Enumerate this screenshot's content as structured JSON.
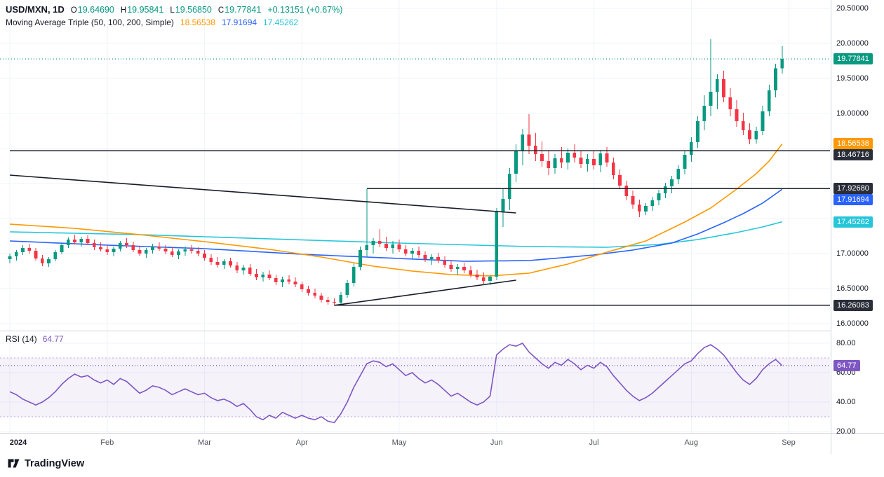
{
  "header": {
    "symbol": "USD/MXN, 1D",
    "ohlc": {
      "o_key": "O",
      "o_val": "19.64690",
      "h_key": "H",
      "h_val": "19.95841",
      "l_key": "L",
      "l_val": "19.56850",
      "c_key": "C",
      "c_val": "19.77841",
      "change": "+0.13151 (+0.67%)"
    },
    "ma_legend": {
      "title": "Moving Average Triple (50, 100, 200, Simple)",
      "ma50": "18.56538",
      "ma100": "17.91694",
      "ma200": "17.45262"
    },
    "rsi_legend": {
      "title": "RSI (14)",
      "value": "64.77"
    }
  },
  "footer": {
    "brand": "TradingView"
  },
  "colors": {
    "up": "#089981",
    "down": "#f23645",
    "sma50": "#ff9800",
    "sma100": "#2962ff",
    "sma200": "#26c6da",
    "rsi": "#7e57c2",
    "drawing": "#1a1d29",
    "grid": "#f0f3fa",
    "last_price_line": "#089981"
  },
  "axes": {
    "price_ticks": [
      {
        "label": "20.50000",
        "price": 20.5
      },
      {
        "label": "20.00000",
        "price": 20.0
      },
      {
        "label": "19.50000",
        "price": 19.5
      },
      {
        "label": "19.00000",
        "price": 19.0
      },
      {
        "label": "17.00000",
        "price": 17.0
      },
      {
        "label": "16.50000",
        "price": 16.5
      },
      {
        "label": "16.00000",
        "price": 16.0
      }
    ],
    "rsi_ticks": [
      {
        "label": "80.00",
        "value": 80
      },
      {
        "label": "60.00",
        "value": 60
      },
      {
        "label": "40.00",
        "value": 40
      },
      {
        "label": "20.00",
        "value": 20
      }
    ],
    "time_labels": [
      {
        "label": "2024",
        "index": 0,
        "strong": true
      },
      {
        "label": "Feb",
        "index": 15
      },
      {
        "label": "Mar",
        "index": 30
      },
      {
        "label": "Apr",
        "index": 45
      },
      {
        "label": "May",
        "index": 60
      },
      {
        "label": "Jun",
        "index": 75
      },
      {
        "label": "Jul",
        "index": 90
      },
      {
        "label": "Aug",
        "index": 105
      },
      {
        "label": "Sep",
        "index": 120
      }
    ],
    "price_badges": [
      {
        "label": "19.77841",
        "price": 19.77841,
        "bg": "#089981"
      },
      {
        "label": "18.56538",
        "price": 18.56538,
        "bg": "#ff9800"
      },
      {
        "label": "18.46716",
        "price": 18.46716,
        "bg": "#2a2e39"
      },
      {
        "label": "17.92680",
        "price": 17.9268,
        "bg": "#2a2e39"
      },
      {
        "label": "17.91694",
        "price": 17.91694,
        "bg": "#2962ff"
      },
      {
        "label": "17.45262",
        "price": 17.45262,
        "bg": "#26c6da"
      },
      {
        "label": "16.26083",
        "price": 16.26083,
        "bg": "#2a2e39"
      }
    ],
    "rsi_badge": {
      "label": "64.77",
      "value": 64.77,
      "bg": "#7e57c2"
    }
  },
  "chart_data": {
    "type": "candlestick",
    "title": "USD/MXN, 1D",
    "pair": "USD/MXN",
    "interval": "1D",
    "y_range": [
      16.0,
      20.5
    ],
    "x_months": [
      "2024",
      "Feb",
      "Mar",
      "Apr",
      "May",
      "Jun",
      "Jul",
      "Aug",
      "Sep"
    ],
    "candles_per_month": 15,
    "last": {
      "open": 19.6469,
      "high": 19.95841,
      "low": 19.5685,
      "close": 19.77841,
      "change": 0.13151,
      "change_pct": 0.67
    },
    "last_price": 19.77841,
    "ohlc": [
      [
        16.92,
        17.0,
        16.86,
        16.96
      ],
      [
        16.96,
        17.05,
        16.9,
        17.02
      ],
      [
        17.02,
        17.12,
        16.98,
        17.08
      ],
      [
        17.08,
        17.14,
        17.0,
        17.04
      ],
      [
        17.04,
        17.08,
        16.9,
        16.93
      ],
      [
        16.93,
        16.98,
        16.82,
        16.86
      ],
      [
        16.86,
        16.95,
        16.81,
        16.92
      ],
      [
        16.92,
        17.05,
        16.89,
        17.02
      ],
      [
        17.02,
        17.15,
        16.99,
        17.12
      ],
      [
        17.12,
        17.23,
        17.08,
        17.2
      ],
      [
        17.2,
        17.27,
        17.13,
        17.16
      ],
      [
        17.16,
        17.24,
        17.1,
        17.21
      ],
      [
        17.21,
        17.26,
        17.12,
        17.15
      ],
      [
        17.15,
        17.2,
        17.05,
        17.09
      ],
      [
        17.09,
        17.16,
        17.03,
        17.06
      ],
      [
        17.06,
        17.12,
        16.98,
        17.02
      ],
      [
        17.02,
        17.1,
        16.96,
        17.07
      ],
      [
        17.07,
        17.18,
        17.03,
        17.15
      ],
      [
        17.15,
        17.22,
        17.08,
        17.12
      ],
      [
        17.12,
        17.17,
        17.02,
        17.05
      ],
      [
        17.05,
        17.11,
        16.97,
        17.0
      ],
      [
        17.0,
        17.08,
        16.94,
        17.05
      ],
      [
        17.05,
        17.14,
        17.0,
        17.1
      ],
      [
        17.1,
        17.16,
        17.04,
        17.07
      ],
      [
        17.07,
        17.12,
        16.99,
        17.03
      ],
      [
        17.03,
        17.09,
        16.95,
        16.98
      ],
      [
        16.98,
        17.06,
        16.92,
        17.03
      ],
      [
        17.03,
        17.1,
        16.97,
        17.06
      ],
      [
        17.06,
        17.12,
        17.0,
        17.04
      ],
      [
        17.04,
        17.09,
        16.96,
        17.0
      ],
      [
        17.0,
        17.05,
        16.9,
        16.94
      ],
      [
        16.94,
        16.99,
        16.84,
        16.88
      ],
      [
        16.88,
        16.95,
        16.8,
        16.84
      ],
      [
        16.84,
        16.92,
        16.78,
        16.89
      ],
      [
        16.89,
        16.94,
        16.8,
        16.83
      ],
      [
        16.83,
        16.88,
        16.72,
        16.76
      ],
      [
        16.76,
        16.84,
        16.7,
        16.8
      ],
      [
        16.8,
        16.85,
        16.68,
        16.71
      ],
      [
        16.71,
        16.78,
        16.62,
        16.66
      ],
      [
        16.66,
        16.74,
        16.6,
        16.7
      ],
      [
        16.7,
        16.76,
        16.62,
        16.65
      ],
      [
        16.65,
        16.7,
        16.55,
        16.59
      ],
      [
        16.59,
        16.67,
        16.52,
        16.63
      ],
      [
        16.63,
        16.69,
        16.56,
        16.6
      ],
      [
        16.6,
        16.66,
        16.52,
        16.56
      ],
      [
        16.56,
        16.6,
        16.45,
        16.49
      ],
      [
        16.49,
        16.54,
        16.4,
        16.44
      ],
      [
        16.44,
        16.5,
        16.36,
        16.4
      ],
      [
        16.4,
        16.44,
        16.3,
        16.34
      ],
      [
        16.34,
        16.38,
        16.27,
        16.31
      ],
      [
        16.31,
        16.36,
        16.261,
        16.3
      ],
      [
        16.3,
        16.45,
        16.28,
        16.41
      ],
      [
        16.41,
        16.62,
        16.37,
        16.58
      ],
      [
        16.58,
        16.86,
        16.53,
        16.81
      ],
      [
        16.81,
        17.1,
        16.76,
        17.05
      ],
      [
        17.05,
        17.927,
        16.95,
        17.12
      ],
      [
        17.12,
        17.22,
        17.0,
        17.18
      ],
      [
        17.18,
        17.35,
        17.09,
        17.14
      ],
      [
        17.14,
        17.24,
        17.04,
        17.08
      ],
      [
        17.08,
        17.18,
        17.0,
        17.13
      ],
      [
        17.13,
        17.2,
        17.02,
        17.06
      ],
      [
        17.06,
        17.12,
        16.96,
        17.0
      ],
      [
        17.0,
        17.08,
        16.92,
        17.04
      ],
      [
        17.04,
        17.1,
        16.94,
        16.98
      ],
      [
        16.98,
        17.03,
        16.88,
        16.92
      ],
      [
        16.92,
        16.99,
        16.84,
        16.95
      ],
      [
        16.95,
        17.01,
        16.86,
        16.9
      ],
      [
        16.9,
        16.96,
        16.8,
        16.84
      ],
      [
        16.84,
        16.9,
        16.74,
        16.78
      ],
      [
        16.78,
        16.85,
        16.7,
        16.81
      ],
      [
        16.81,
        16.87,
        16.72,
        16.76
      ],
      [
        16.76,
        16.82,
        16.66,
        16.7
      ],
      [
        16.7,
        16.77,
        16.62,
        16.66
      ],
      [
        16.66,
        16.73,
        16.57,
        16.61
      ],
      [
        16.61,
        16.7,
        16.55,
        16.67
      ],
      [
        16.67,
        17.65,
        16.62,
        17.6
      ],
      [
        17.6,
        17.92,
        17.38,
        17.78
      ],
      [
        17.78,
        18.22,
        17.62,
        18.14
      ],
      [
        18.14,
        18.56,
        18.02,
        18.46
      ],
      [
        18.46,
        18.78,
        18.26,
        18.7
      ],
      [
        18.7,
        18.99,
        18.42,
        18.54
      ],
      [
        18.54,
        18.72,
        18.32,
        18.42
      ],
      [
        18.42,
        18.6,
        18.24,
        18.32
      ],
      [
        18.32,
        18.46,
        18.12,
        18.22
      ],
      [
        18.22,
        18.42,
        18.14,
        18.36
      ],
      [
        18.36,
        18.52,
        18.22,
        18.3
      ],
      [
        18.3,
        18.5,
        18.2,
        18.44
      ],
      [
        18.44,
        18.56,
        18.3,
        18.37
      ],
      [
        18.37,
        18.47,
        18.22,
        18.28
      ],
      [
        18.28,
        18.42,
        18.17,
        18.35
      ],
      [
        18.35,
        18.46,
        18.2,
        18.26
      ],
      [
        18.26,
        18.48,
        18.16,
        18.43
      ],
      [
        18.43,
        18.52,
        18.24,
        18.3
      ],
      [
        18.3,
        18.37,
        18.06,
        18.12
      ],
      [
        18.12,
        18.2,
        17.92,
        17.97
      ],
      [
        17.97,
        18.04,
        17.76,
        17.82
      ],
      [
        17.82,
        17.9,
        17.64,
        17.7
      ],
      [
        17.7,
        17.77,
        17.52,
        17.6
      ],
      [
        17.6,
        17.72,
        17.55,
        17.68
      ],
      [
        17.68,
        17.81,
        17.61,
        17.76
      ],
      [
        17.76,
        17.91,
        17.69,
        17.86
      ],
      [
        17.86,
        18.01,
        17.79,
        17.96
      ],
      [
        17.96,
        18.11,
        17.86,
        18.06
      ],
      [
        18.06,
        18.26,
        17.99,
        18.21
      ],
      [
        18.21,
        18.46,
        18.13,
        18.41
      ],
      [
        18.41,
        18.66,
        18.31,
        18.59
      ],
      [
        18.59,
        18.96,
        18.51,
        18.89
      ],
      [
        18.89,
        19.26,
        18.76,
        19.11
      ],
      [
        19.11,
        20.06,
        18.96,
        19.31
      ],
      [
        19.31,
        19.56,
        19.06,
        19.49
      ],
      [
        19.49,
        19.61,
        19.16,
        19.23
      ],
      [
        19.23,
        19.36,
        18.96,
        19.06
      ],
      [
        19.06,
        19.19,
        18.81,
        18.89
      ],
      [
        18.89,
        19.01,
        18.69,
        18.76
      ],
      [
        18.76,
        18.86,
        18.56,
        18.63
      ],
      [
        18.63,
        18.81,
        18.57,
        18.75
      ],
      [
        18.75,
        19.11,
        18.69,
        19.03
      ],
      [
        19.03,
        19.41,
        18.96,
        19.33
      ],
      [
        19.33,
        19.71,
        19.23,
        19.647
      ],
      [
        19.6469,
        19.95841,
        19.5685,
        19.77841
      ]
    ],
    "sma": {
      "50": {
        "color": "#ff9800",
        "last": 18.56538,
        "keypoints": [
          [
            0,
            17.42
          ],
          [
            10,
            17.36
          ],
          [
            20,
            17.27
          ],
          [
            30,
            17.17
          ],
          [
            40,
            17.06
          ],
          [
            48,
            16.95
          ],
          [
            56,
            16.82
          ],
          [
            62,
            16.75
          ],
          [
            68,
            16.7
          ],
          [
            74,
            16.68
          ],
          [
            80,
            16.72
          ],
          [
            86,
            16.85
          ],
          [
            92,
            17.02
          ],
          [
            98,
            17.18
          ],
          [
            104,
            17.45
          ],
          [
            108,
            17.65
          ],
          [
            112,
            17.92
          ],
          [
            115,
            18.14
          ],
          [
            117,
            18.32
          ],
          [
            119,
            18.565
          ]
        ]
      },
      "100": {
        "color": "#2962ff",
        "last": 17.91694,
        "keypoints": [
          [
            0,
            17.18
          ],
          [
            15,
            17.12
          ],
          [
            30,
            17.07
          ],
          [
            45,
            16.99
          ],
          [
            60,
            16.93
          ],
          [
            70,
            16.89
          ],
          [
            80,
            16.9
          ],
          [
            90,
            16.98
          ],
          [
            96,
            17.05
          ],
          [
            102,
            17.15
          ],
          [
            106,
            17.28
          ],
          [
            110,
            17.44
          ],
          [
            113,
            17.57
          ],
          [
            116,
            17.72
          ],
          [
            119,
            17.917
          ]
        ]
      },
      "200": {
        "color": "#26c6da",
        "last": 17.45262,
        "keypoints": [
          [
            0,
            17.31
          ],
          [
            20,
            17.27
          ],
          [
            40,
            17.21
          ],
          [
            60,
            17.15
          ],
          [
            80,
            17.1
          ],
          [
            92,
            17.09
          ],
          [
            100,
            17.13
          ],
          [
            106,
            17.2
          ],
          [
            112,
            17.3
          ],
          [
            116,
            17.38
          ],
          [
            119,
            17.453
          ]
        ]
      }
    },
    "drawings": {
      "hlines": [
        {
          "price": 18.46716,
          "from_index": 0
        },
        {
          "price": 17.9268,
          "from_index": 55
        },
        {
          "price": 16.26083,
          "from_index": 50
        }
      ],
      "trendlines": [
        {
          "from": [
            0,
            18.12
          ],
          "to": [
            78,
            17.58
          ]
        },
        {
          "from": [
            50,
            16.261
          ],
          "to": [
            78,
            16.62
          ]
        }
      ]
    },
    "rsi": {
      "period": 14,
      "current": 64.77,
      "range": [
        20,
        80
      ],
      "bands": [
        30,
        70
      ],
      "values": [
        47,
        45,
        42,
        40,
        38,
        40,
        43,
        47,
        52,
        56,
        59,
        57,
        58,
        55,
        53,
        55,
        52,
        56,
        54,
        50,
        46,
        48,
        51,
        50,
        48,
        45,
        47,
        49,
        47,
        45,
        46,
        43,
        41,
        42,
        40,
        37,
        39,
        35,
        30,
        28,
        31,
        29,
        33,
        31,
        29,
        31,
        29,
        28,
        30,
        27,
        26,
        32,
        40,
        50,
        58,
        66,
        68,
        67,
        64,
        66,
        62,
        58,
        60,
        56,
        53,
        55,
        52,
        48,
        44,
        46,
        43,
        40,
        38,
        40,
        44,
        72,
        76,
        79,
        78,
        80,
        74,
        70,
        66,
        63,
        67,
        65,
        69,
        66,
        62,
        65,
        63,
        67,
        64,
        58,
        53,
        48,
        44,
        41,
        43,
        46,
        50,
        54,
        58,
        62,
        66,
        68,
        73,
        77,
        79,
        76,
        72,
        66,
        60,
        55,
        52,
        56,
        62,
        66,
        69,
        64.77
      ]
    }
  }
}
